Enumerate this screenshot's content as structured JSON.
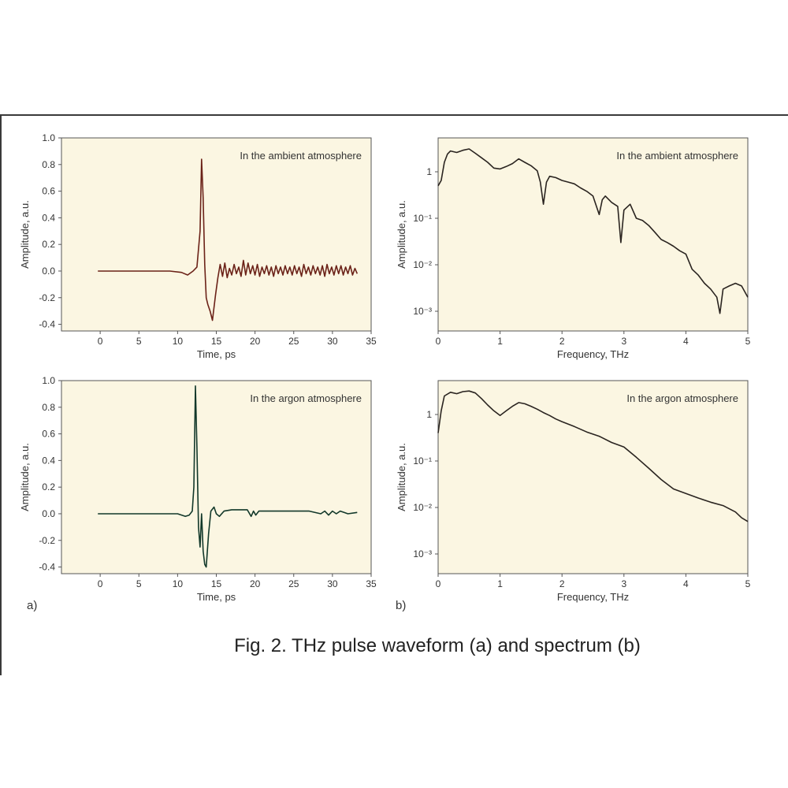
{
  "figure": {
    "caption": "Fig. 2. THz pulse waveform (a)  and spectrum (b)",
    "panel_a_label": "a)",
    "panel_b_label": "b)"
  },
  "colors": {
    "plot_bg": "#fbf6e2",
    "axis": "#555555",
    "trace_ambient_time": "#6b2218",
    "trace_argon_time": "#12382a",
    "trace_spectrum": "#2a2420"
  },
  "chart_data": [
    {
      "type": "line",
      "xlabel": "Time, ps",
      "ylabel": "Amplitude, a.u.",
      "annotation": "In the ambient atmosphere",
      "xlim": [
        -5,
        35
      ],
      "ylim": [
        -0.45,
        1.0
      ],
      "xticks": [
        "0",
        "5",
        "10",
        "15",
        "20",
        "25",
        "30",
        "35"
      ],
      "yticks": [
        "1.0",
        "0.8",
        "0.6",
        "0.4",
        "0.2",
        "0.0",
        "-0.2",
        "-0.4"
      ],
      "series": [
        {
          "x": [
            -0.3,
            5,
            9,
            10.5,
            11.3,
            12,
            12.5,
            12.9,
            13.1,
            13.3,
            13.5,
            13.7,
            13.9,
            14.2,
            14.5,
            14.9,
            15.2,
            15.5,
            15.8,
            16.1,
            16.4,
            16.7,
            17.0,
            17.3,
            17.6,
            17.9,
            18.2,
            18.5,
            18.8,
            19.1,
            19.4,
            19.7,
            20.0,
            20.3,
            20.6,
            20.9,
            21.2,
            21.5,
            21.8,
            22.1,
            22.4,
            22.7,
            23.0,
            23.3,
            23.6,
            23.9,
            24.2,
            24.5,
            24.8,
            25.1,
            25.4,
            25.7,
            26.0,
            26.3,
            26.6,
            26.9,
            27.2,
            27.5,
            27.8,
            28.1,
            28.4,
            28.7,
            29.0,
            29.3,
            29.6,
            29.9,
            30.2,
            30.5,
            30.8,
            31.1,
            31.4,
            31.7,
            32.0,
            32.3,
            32.6,
            32.9,
            33.2
          ],
          "y": [
            0.0,
            0.0,
            0.0,
            -0.01,
            -0.03,
            0.0,
            0.03,
            0.3,
            0.84,
            0.55,
            0.05,
            -0.2,
            -0.25,
            -0.3,
            -0.37,
            -0.18,
            -0.05,
            0.05,
            -0.04,
            0.06,
            -0.05,
            0.02,
            -0.03,
            0.05,
            -0.02,
            0.03,
            -0.04,
            0.08,
            -0.03,
            0.06,
            -0.02,
            0.04,
            -0.03,
            0.05,
            -0.04,
            0.03,
            -0.02,
            0.04,
            -0.03,
            0.03,
            -0.04,
            0.04,
            -0.02,
            0.03,
            -0.03,
            0.04,
            -0.02,
            0.03,
            -0.03,
            0.04,
            -0.02,
            0.03,
            -0.04,
            0.05,
            -0.02,
            0.03,
            -0.03,
            0.04,
            -0.02,
            0.03,
            -0.03,
            0.04,
            -0.04,
            0.05,
            -0.02,
            0.03,
            -0.03,
            0.04,
            -0.02,
            0.04,
            -0.03,
            0.03,
            -0.02,
            0.04,
            -0.03,
            0.02,
            -0.02
          ]
        }
      ]
    },
    {
      "type": "line",
      "xlabel": "Frequency, THz",
      "ylabel": "Amplitude, a.u.",
      "annotation": "In the ambient atmosphere",
      "log_y": true,
      "xlim": [
        0,
        5
      ],
      "xticks": [
        "0",
        "1",
        "2",
        "3",
        "4",
        "5"
      ],
      "yticks": [
        "1",
        "10⁻¹",
        "10⁻²",
        "10⁻³"
      ],
      "series": [
        {
          "x": [
            0.0,
            0.05,
            0.1,
            0.15,
            0.2,
            0.3,
            0.4,
            0.5,
            0.6,
            0.7,
            0.8,
            0.9,
            1.0,
            1.1,
            1.2,
            1.3,
            1.4,
            1.5,
            1.6,
            1.65,
            1.7,
            1.75,
            1.8,
            1.9,
            2.0,
            2.1,
            2.2,
            2.3,
            2.4,
            2.5,
            2.6,
            2.65,
            2.7,
            2.8,
            2.9,
            2.95,
            3.0,
            3.1,
            3.2,
            3.3,
            3.4,
            3.5,
            3.6,
            3.7,
            3.8,
            3.9,
            4.0,
            4.1,
            4.2,
            4.3,
            4.4,
            4.5,
            4.55,
            4.6,
            4.7,
            4.8,
            4.9,
            5.0
          ],
          "y": [
            0.5,
            0.65,
            1.6,
            2.4,
            2.8,
            2.6,
            2.9,
            3.1,
            2.5,
            2.0,
            1.6,
            1.2,
            1.15,
            1.3,
            1.5,
            1.9,
            1.6,
            1.35,
            1.05,
            0.6,
            0.2,
            0.6,
            0.8,
            0.75,
            0.65,
            0.6,
            0.55,
            0.45,
            0.38,
            0.3,
            0.12,
            0.25,
            0.3,
            0.22,
            0.18,
            0.03,
            0.15,
            0.2,
            0.1,
            0.09,
            0.07,
            0.05,
            0.035,
            0.03,
            0.025,
            0.02,
            0.017,
            0.008,
            0.006,
            0.004,
            0.003,
            0.002,
            0.0009,
            0.003,
            0.0035,
            0.004,
            0.0035,
            0.002
          ]
        }
      ]
    },
    {
      "type": "line",
      "xlabel": "Time, ps",
      "ylabel": "Amplitude, a.u.",
      "annotation": "In the argon atmosphere",
      "xlim": [
        -5,
        35
      ],
      "ylim": [
        -0.45,
        1.0
      ],
      "xticks": [
        "0",
        "5",
        "10",
        "15",
        "20",
        "25",
        "30",
        "35"
      ],
      "yticks": [
        "1.0",
        "0.8",
        "0.6",
        "0.4",
        "0.2",
        "0.0",
        "-0.2",
        "-0.4"
      ],
      "series": [
        {
          "x": [
            -0.3,
            5,
            8,
            10,
            11.0,
            11.5,
            11.9,
            12.1,
            12.3,
            12.5,
            12.7,
            12.9,
            13.1,
            13.3,
            13.5,
            13.7,
            14.0,
            14.3,
            14.7,
            15.0,
            15.4,
            16.0,
            17,
            18,
            19,
            19.5,
            19.8,
            20.1,
            20.5,
            21,
            23,
            25,
            27,
            28.5,
            29.0,
            29.5,
            30.0,
            30.5,
            31.0,
            31.5,
            32,
            33.2
          ],
          "y": [
            0.0,
            0.0,
            0.0,
            0.0,
            -0.02,
            -0.01,
            0.02,
            0.2,
            0.96,
            0.5,
            -0.1,
            -0.25,
            0.0,
            -0.28,
            -0.38,
            -0.4,
            -0.15,
            0.02,
            0.05,
            0.0,
            -0.02,
            0.02,
            0.03,
            0.03,
            0.03,
            -0.02,
            0.02,
            -0.01,
            0.02,
            0.02,
            0.02,
            0.02,
            0.02,
            0.0,
            0.02,
            -0.01,
            0.02,
            0.0,
            0.02,
            0.01,
            0.0,
            0.01
          ]
        }
      ]
    },
    {
      "type": "line",
      "xlabel": "Frequency, THz",
      "ylabel": "Amplitude, a.u.",
      "annotation": "In the argon atmosphere",
      "log_y": true,
      "xlim": [
        0,
        5
      ],
      "xticks": [
        "0",
        "1",
        "2",
        "3",
        "4",
        "5"
      ],
      "yticks": [
        "1",
        "10⁻¹",
        "10⁻²",
        "10⁻³"
      ],
      "series": [
        {
          "x": [
            0.0,
            0.05,
            0.1,
            0.2,
            0.3,
            0.4,
            0.5,
            0.6,
            0.7,
            0.8,
            0.9,
            1.0,
            1.1,
            1.2,
            1.3,
            1.4,
            1.5,
            1.6,
            1.7,
            1.8,
            1.9,
            2.0,
            2.2,
            2.4,
            2.6,
            2.8,
            3.0,
            3.2,
            3.4,
            3.6,
            3.8,
            4.0,
            4.2,
            4.4,
            4.6,
            4.8,
            4.9,
            5.0
          ],
          "y": [
            0.4,
            1.2,
            2.5,
            3.0,
            2.8,
            3.1,
            3.2,
            2.9,
            2.2,
            1.6,
            1.2,
            0.95,
            1.2,
            1.5,
            1.8,
            1.7,
            1.5,
            1.3,
            1.1,
            0.95,
            0.8,
            0.7,
            0.55,
            0.42,
            0.34,
            0.25,
            0.2,
            0.12,
            0.07,
            0.04,
            0.025,
            0.02,
            0.016,
            0.013,
            0.011,
            0.008,
            0.006,
            0.005
          ]
        }
      ]
    }
  ]
}
